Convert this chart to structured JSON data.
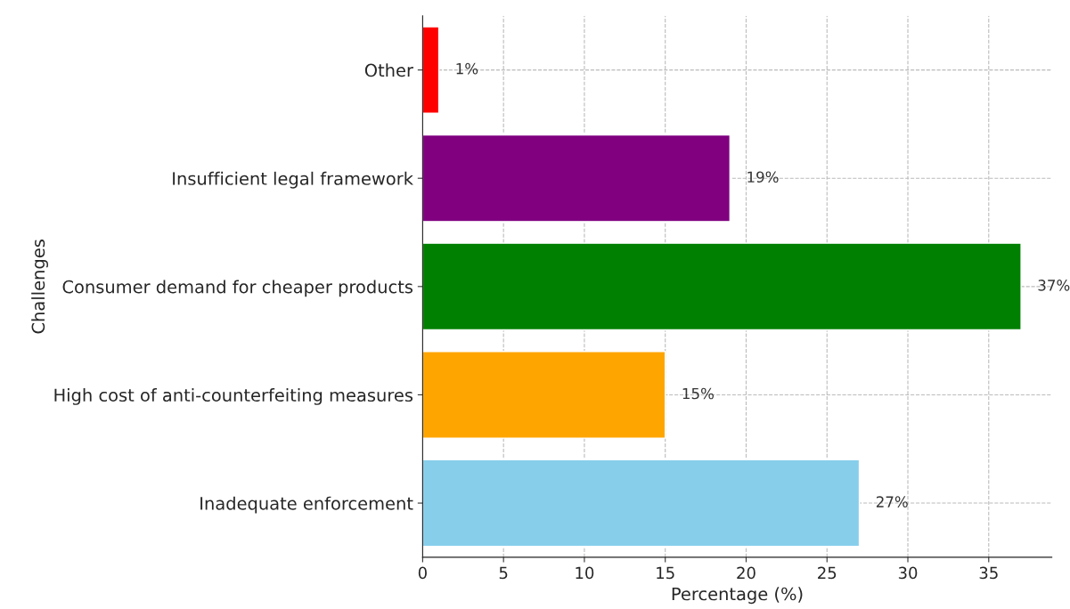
{
  "chart_data": {
    "type": "bar",
    "orientation": "horizontal",
    "xlabel": "Percentage (%)",
    "ylabel": "Challenges",
    "categories": [
      "Other",
      "Insufficient legal framework",
      "Consumer demand for cheaper products",
      "High cost of anti-counterfeiting measures",
      "Inadequate enforcement"
    ],
    "values": [
      1,
      19,
      37,
      15,
      27
    ],
    "colors": [
      "#ff0000",
      "#800080",
      "#008000",
      "#ffa500",
      "#87ceeb"
    ],
    "value_labels": [
      "1%",
      "19%",
      "37%",
      "15%",
      "27%"
    ],
    "xlim": [
      0,
      38.9
    ],
    "xticks": [
      0,
      5,
      10,
      15,
      20,
      25,
      30,
      35
    ],
    "grid": true
  }
}
